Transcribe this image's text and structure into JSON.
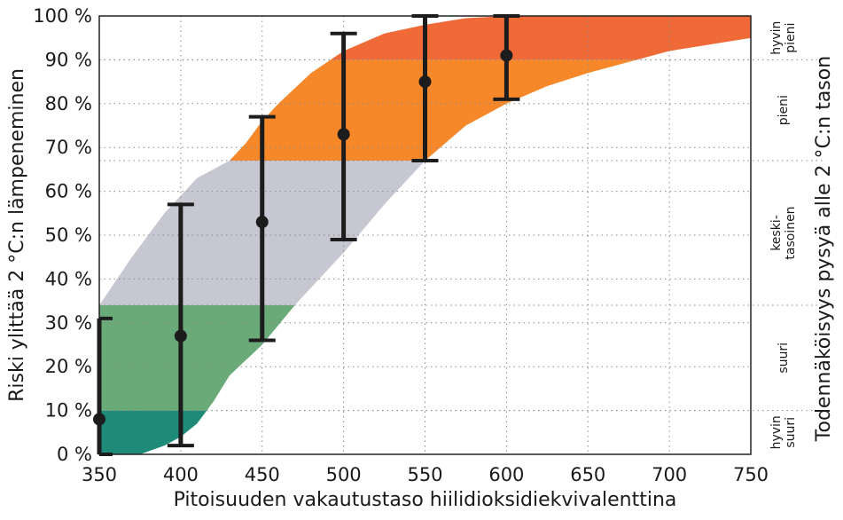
{
  "chart_data": {
    "type": "area",
    "xlabel": "Pitoisuuden vakautustaso hiilidioksidiekvivalenttina",
    "ylabel": "Riski ylittää 2 °C:n lämpeneminen",
    "y2label": "Todennäköisyys pysyä alle 2 °C:n tason",
    "xlim": [
      350,
      750
    ],
    "ylim": [
      0,
      100
    ],
    "x_ticks": [
      "350",
      "400",
      "450",
      "500",
      "550",
      "600",
      "650",
      "700",
      "750"
    ],
    "y_ticks": [
      "0 %",
      "10 %",
      "20 %",
      "30 %",
      "40 %",
      "50 %",
      "60 %",
      "70 %",
      "80 %",
      "90 %",
      "100 %"
    ],
    "grid": true,
    "upper_curve": [
      [
        350,
        34
      ],
      [
        370,
        45
      ],
      [
        390,
        55
      ],
      [
        410,
        63
      ],
      [
        430,
        67
      ],
      [
        440,
        71
      ],
      [
        450,
        76
      ],
      [
        460,
        80
      ],
      [
        480,
        87
      ],
      [
        500,
        92
      ],
      [
        525,
        96
      ],
      [
        550,
        98
      ],
      [
        575,
        99.5
      ],
      [
        600,
        100
      ],
      [
        750,
        100
      ]
    ],
    "lower_curve": [
      [
        350,
        0
      ],
      [
        375,
        0
      ],
      [
        390,
        2
      ],
      [
        400,
        4
      ],
      [
        410,
        7
      ],
      [
        420,
        12
      ],
      [
        430,
        18
      ],
      [
        450,
        25
      ],
      [
        470,
        34
      ],
      [
        500,
        46
      ],
      [
        525,
        57
      ],
      [
        550,
        67
      ],
      [
        575,
        75
      ],
      [
        600,
        80
      ],
      [
        625,
        84
      ],
      [
        650,
        87
      ],
      [
        700,
        92
      ],
      [
        750,
        95
      ]
    ],
    "bands": [
      {
        "label": "hyvin suuri",
        "from": 0,
        "to": 10,
        "color": "#1e8a78"
      },
      {
        "label": "suuri",
        "from": 10,
        "to": 34,
        "color": "#6aaa78"
      },
      {
        "label": "keski-tasoinen",
        "from": 34,
        "to": 67,
        "color": "#c6c7d1"
      },
      {
        "label": "pieni",
        "from": 67,
        "to": 90,
        "color": "#f7882a"
      },
      {
        "label": "hyvin pieni",
        "from": 90,
        "to": 100,
        "color": "#ef6a37"
      }
    ],
    "points": [
      {
        "x": 350,
        "y": 8,
        "low": 0,
        "high": 31
      },
      {
        "x": 400,
        "y": 27,
        "low": 2,
        "high": 57
      },
      {
        "x": 450,
        "y": 53,
        "low": 26,
        "high": 77
      },
      {
        "x": 500,
        "y": 73,
        "low": 49,
        "high": 96
      },
      {
        "x": 550,
        "y": 85,
        "low": 67,
        "high": 100
      },
      {
        "x": 600,
        "y": 91,
        "low": 81,
        "high": 100
      }
    ],
    "marker_color": "#1c1c1c"
  }
}
